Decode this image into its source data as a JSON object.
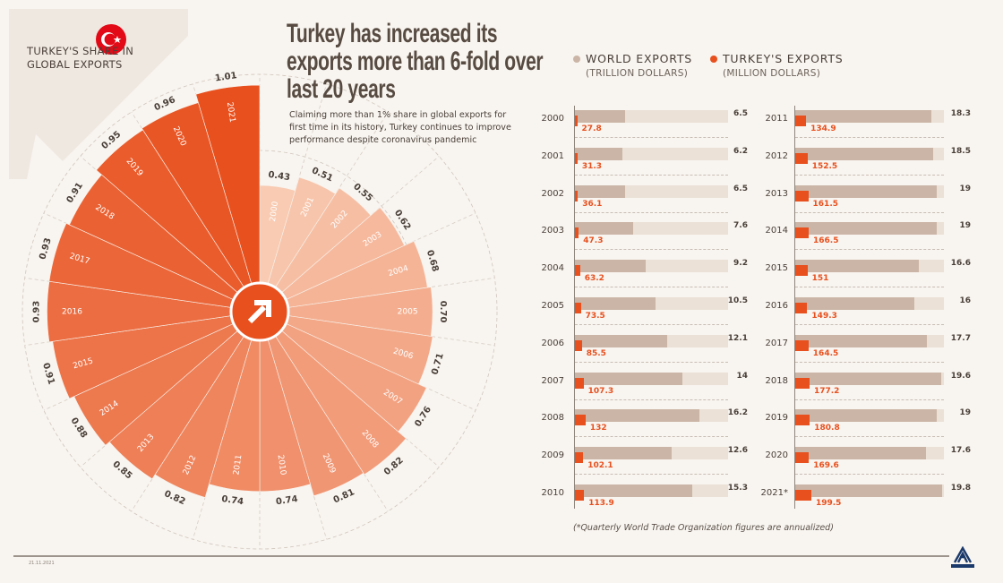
{
  "header": {
    "share_label": "TURKEY'S SHARE IN GLOBAL EXPORTS",
    "title": "Turkey has increased its exports more than 6-fold over last 20 years",
    "subtitle": "Claiming more than 1% share in global exports for first time in its history, Turkey continues to improve performance despite coronavirus pandemic"
  },
  "legend": {
    "world": "WORLD EXPORTS",
    "world_unit": "(TRILLION DOLLARS)",
    "turkey": "TURKEY'S EXPORTS",
    "turkey_unit": "(MILLION DOLLARS)"
  },
  "colors": {
    "world": "#cbb5a6",
    "world_track": "#ebe1d7",
    "turkey": "#e8501e",
    "wedge_light": "#f8cbb2",
    "wedge_dark": "#e8501e"
  },
  "footer": {
    "note": "(*Quarterly World Trade Organization figures are annualized)",
    "date": "21.11.2021",
    "logo": "ANADOLU AGENCY"
  },
  "chart_data": [
    {
      "type": "polar-bar",
      "title": "TURKEY'S SHARE IN GLOBAL EXPORTS",
      "unit": "%",
      "categories": [
        "2000",
        "2001",
        "2002",
        "2003",
        "2004",
        "2005",
        "2006",
        "2007",
        "2008",
        "2009",
        "2010",
        "2011",
        "2012",
        "2013",
        "2014",
        "2015",
        "2016",
        "2017",
        "2018",
        "2019",
        "2020",
        "2021"
      ],
      "values": [
        0.43,
        0.51,
        0.55,
        0.62,
        0.68,
        0.7,
        0.71,
        0.76,
        0.82,
        0.81,
        0.74,
        0.74,
        0.82,
        0.85,
        0.88,
        0.91,
        0.93,
        0.93,
        0.91,
        0.95,
        0.96,
        1.01
      ],
      "labels": [
        "0.43",
        "0.51",
        "0.55",
        "0.62",
        "0.68",
        "0.70",
        "0.71",
        "0.76",
        "0.82",
        "0.81",
        "0.74",
        "0.74",
        "0.82",
        "0.85",
        "0.88",
        "0.91",
        "0.93",
        "0.93",
        "0.91",
        "0.95",
        "0.96",
        "1.01"
      ]
    },
    {
      "type": "bar",
      "categories": [
        "2000",
        "2001",
        "2002",
        "2003",
        "2004",
        "2005",
        "2006",
        "2007",
        "2008",
        "2009",
        "2010",
        "2011",
        "2012",
        "2013",
        "2014",
        "2015",
        "2016",
        "2017",
        "2018",
        "2019",
        "2020",
        "2021*"
      ],
      "series": [
        {
          "name": "WORLD EXPORTS (TRILLION DOLLARS)",
          "values": [
            6.5,
            6.2,
            6.5,
            7.6,
            9.2,
            10.5,
            12.1,
            14,
            16.2,
            12.6,
            15.3,
            18.3,
            18.5,
            19,
            19,
            16.6,
            16,
            17.7,
            19.6,
            19,
            17.6,
            19.8
          ],
          "labels": [
            "6.5",
            "6.2",
            "6.5",
            "7.6",
            "9.2",
            "10.5",
            "12.1",
            "14",
            "16.2",
            "12.6",
            "15.3",
            "18.3",
            "18.5",
            "19",
            "19",
            "16.6",
            "16",
            "17.7",
            "19.6",
            "19",
            "17.6",
            "19.8"
          ]
        },
        {
          "name": "TURKEY'S EXPORTS (MILLION DOLLARS)",
          "values": [
            27.8,
            31.3,
            36.1,
            47.3,
            63.2,
            73.5,
            85.5,
            107.3,
            132,
            102.1,
            113.9,
            134.9,
            152.5,
            161.5,
            166.5,
            151,
            149.3,
            164.5,
            177.2,
            180.8,
            169.6,
            199.5
          ],
          "labels": [
            "27.8",
            "31.3",
            "36.1",
            "47.3",
            "63.2",
            "73.5",
            "85.5",
            "107.3",
            "132",
            "102.1",
            "113.9",
            "134.9",
            "152.5",
            "161.5",
            "166.5",
            "151",
            "149.3",
            "164.5",
            "177.2",
            "180.8",
            "169.6",
            "199.5"
          ]
        }
      ],
      "xlim": [
        0,
        20
      ]
    }
  ]
}
